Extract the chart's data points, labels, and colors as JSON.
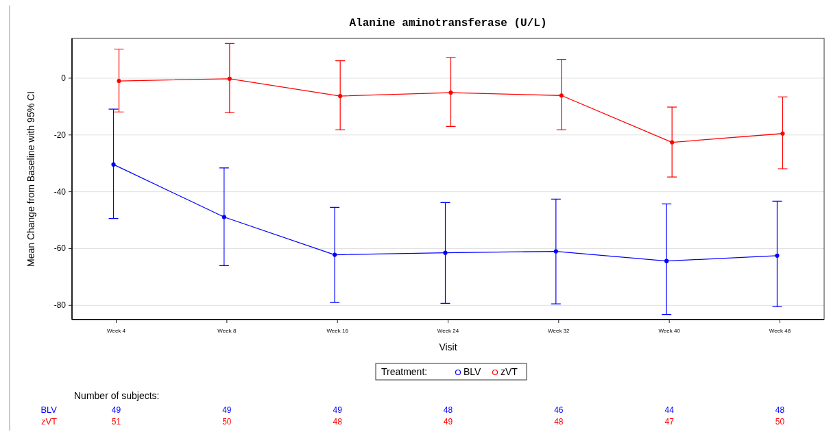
{
  "chart_data": {
    "type": "line",
    "title": "Alanine aminotransferase (U/L)",
    "xlabel": "Visit",
    "ylabel": "Mean Change from Baseline with 95% CI",
    "legend_title": "Treatment:",
    "categories": [
      "Week 4",
      "Week 8",
      "Week 16",
      "Week 24",
      "Week 32",
      "Week 40",
      "Week 48"
    ],
    "series": [
      {
        "name": "BLV",
        "color": "#0000ff",
        "values": [
          -30.4,
          -48.9,
          -62.2,
          -61.5,
          -61,
          -64.4,
          -62.5
        ],
        "errors": [
          [
            -49.4,
            -10.9
          ],
          [
            -66,
            -31.6
          ],
          [
            -79,
            -45.5
          ],
          [
            -79.3,
            -43.8
          ],
          [
            -79.5,
            -42.6
          ],
          [
            -83.2,
            -44.3
          ],
          [
            -80.5,
            -43.3
          ]
        ]
      },
      {
        "name": "zVT",
        "color": "#ff0000",
        "values": [
          -1,
          -0.2,
          -6.3,
          -5.1,
          -6.1,
          -22.6,
          -19.5
        ],
        "errors": [
          [
            -11.9,
            10.2
          ],
          [
            -12.2,
            12.2
          ],
          [
            -18.2,
            6.1
          ],
          [
            -17,
            7.3
          ],
          [
            -18.2,
            6.6
          ],
          [
            -34.8,
            -10.2
          ],
          [
            -31.9,
            -6.6
          ]
        ]
      }
    ],
    "ylim": [
      -85,
      14
    ],
    "yticks": [
      -80,
      -60,
      -40,
      -20,
      0
    ],
    "grid": "y",
    "legend": "bottom",
    "marker": "circle",
    "line_style": "solid",
    "annotations": [
      "Number of subjects:",
      "BLV",
      "49",
      "49",
      "49",
      "48",
      "46",
      "44",
      "48",
      "zVT",
      "51",
      "50",
      "48",
      "49",
      "48",
      "47",
      "50"
    ]
  }
}
